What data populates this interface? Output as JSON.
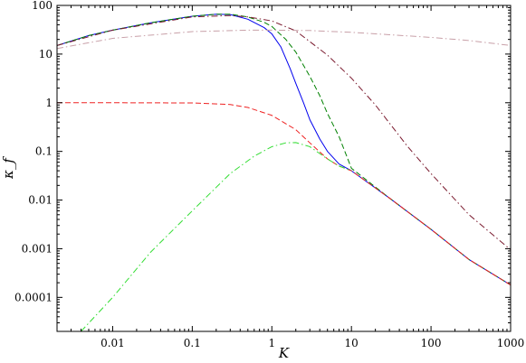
{
  "chart_data": {
    "type": "line",
    "xlabel": "K",
    "ylabel": "κ_f",
    "x_scale": "log",
    "y_scale": "log",
    "xlim": [
      0.002,
      1000
    ],
    "ylim": [
      2e-05,
      100
    ],
    "grid": false,
    "legend": "none",
    "x_ticks": [
      {
        "value": 0.01,
        "label": "0.01"
      },
      {
        "value": 0.1,
        "label": "0.1"
      },
      {
        "value": 1,
        "label": "1"
      },
      {
        "value": 10,
        "label": "10"
      },
      {
        "value": 100,
        "label": "100"
      },
      {
        "value": 1000,
        "label": "1000"
      }
    ],
    "y_ticks": [
      {
        "value": 0.0001,
        "label": "0.0001"
      },
      {
        "value": 0.001,
        "label": "0.001"
      },
      {
        "value": 0.01,
        "label": "0.01"
      },
      {
        "value": 0.1,
        "label": "0.1"
      },
      {
        "value": 1,
        "label": "1"
      },
      {
        "value": 10,
        "label": "10"
      },
      {
        "value": 100,
        "label": "100"
      }
    ],
    "series": [
      {
        "color": "#0000ee",
        "dash": "solid",
        "x": [
          0.002,
          0.005,
          0.01,
          0.03,
          0.1,
          0.2,
          0.3,
          0.5,
          0.8,
          1.0,
          1.3,
          1.7,
          2.0,
          2.5,
          3.0,
          4.0,
          5.0,
          7.0,
          10,
          30,
          100,
          300,
          1000
        ],
        "y": [
          15,
          24,
          31,
          44,
          60,
          66,
          65,
          52,
          35,
          26,
          14,
          5,
          2.5,
          1.0,
          0.45,
          0.18,
          0.1,
          0.055,
          0.04,
          0.011,
          0.0025,
          0.0006,
          0.00018
        ]
      },
      {
        "color": "#008000",
        "dash": "dashed",
        "x": [
          0.002,
          0.005,
          0.01,
          0.03,
          0.1,
          0.2,
          0.3,
          0.5,
          0.8,
          1.0,
          1.5,
          2.0,
          3.0,
          4.0,
          5.0,
          7.0,
          10,
          30,
          100,
          300,
          1000
        ],
        "y": [
          15,
          24,
          31,
          44,
          60,
          66,
          66,
          58,
          45,
          37,
          20,
          11,
          3.5,
          1.4,
          0.6,
          0.2,
          0.045,
          0.011,
          0.0025,
          0.0006,
          0.00018
        ]
      },
      {
        "color": "#7a1a2e",
        "dash": "dashdot",
        "x": [
          0.002,
          0.01,
          0.1,
          0.3,
          0.5,
          1.0,
          2.0,
          5.0,
          10,
          20,
          50,
          100,
          300,
          1000
        ],
        "y": [
          15,
          31,
          58,
          62,
          58,
          48,
          30,
          9.5,
          3.2,
          0.9,
          0.13,
          0.035,
          0.005,
          0.00095
        ]
      },
      {
        "color": "#c8a0a8",
        "dash": "dashdot",
        "x": [
          0.002,
          0.01,
          0.1,
          0.5,
          1.0,
          3.0,
          10,
          30,
          100,
          300,
          1000
        ],
        "y": [
          13,
          21,
          29,
          31,
          31,
          30.5,
          28,
          25,
          22,
          19,
          15
        ]
      },
      {
        "color": "#ee2222",
        "dash": "dashed",
        "x": [
          0.002,
          0.01,
          0.1,
          0.3,
          0.5,
          1.0,
          2.0,
          3.0,
          5.0,
          7.0,
          10,
          30,
          100,
          300,
          1000
        ],
        "y": [
          1,
          1,
          0.99,
          0.92,
          0.8,
          0.55,
          0.28,
          0.15,
          0.07,
          0.05,
          0.04,
          0.011,
          0.0025,
          0.0006,
          0.00018
        ]
      },
      {
        "color": "#33dd33",
        "dash": "dashdot",
        "x": [
          0.004,
          0.01,
          0.03,
          0.1,
          0.3,
          0.6,
          1.0,
          1.5,
          2.0,
          3.0,
          5.0,
          7.0,
          10
        ],
        "y": [
          2e-05,
          0.0001,
          0.00085,
          0.006,
          0.035,
          0.08,
          0.125,
          0.15,
          0.152,
          0.125,
          0.07,
          0.05,
          0.04
        ]
      }
    ]
  }
}
